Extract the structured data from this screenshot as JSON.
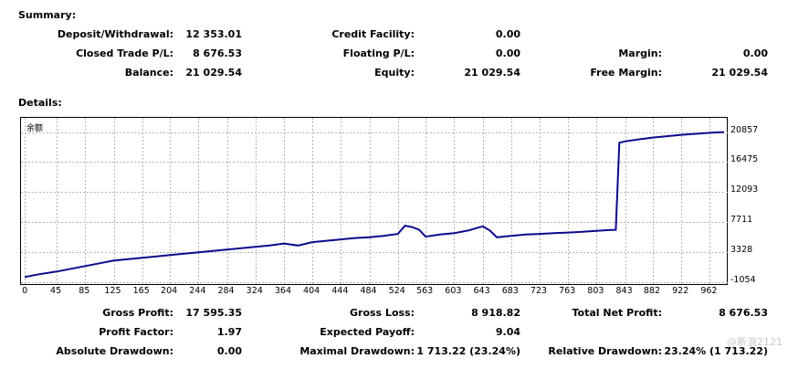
{
  "summary": {
    "title": "Summary:",
    "deposit_withdrawal": {
      "label": "Deposit/Withdrawal:",
      "value": "12 353.01"
    },
    "credit_facility": {
      "label": "Credit Facility:",
      "value": "0.00"
    },
    "closed_trade_pl": {
      "label": "Closed Trade P/L:",
      "value": "8 676.53"
    },
    "floating_pl": {
      "label": "Floating P/L:",
      "value": "0.00"
    },
    "margin": {
      "label": "Margin:",
      "value": "0.00"
    },
    "balance": {
      "label": "Balance:",
      "value": "21 029.54"
    },
    "equity": {
      "label": "Equity:",
      "value": "21 029.54"
    },
    "free_margin": {
      "label": "Free Margin:",
      "value": "21 029.54"
    }
  },
  "details": {
    "title": "Details:",
    "gross_profit": {
      "label": "Gross Profit:",
      "value": "17 595.35"
    },
    "gross_loss": {
      "label": "Gross Loss:",
      "value": "8 918.82"
    },
    "total_net_profit": {
      "label": "Total Net Profit:",
      "value": "8 676.53"
    },
    "profit_factor": {
      "label": "Profit Factor:",
      "value": "1.97"
    },
    "expected_payoff": {
      "label": "Expected Payoff:",
      "value": "9.04"
    },
    "absolute_drawdown": {
      "label": "Absolute Drawdown:",
      "value": "0.00"
    },
    "maximal_drawdown": {
      "label": "Maximal Drawdown:",
      "value": "1 713.22 (23.24%)"
    },
    "relative_drawdown": {
      "label": "Relative Drawdown:",
      "value": "23.24% (1 713.22)"
    }
  },
  "watermark": "@新浪2121",
  "colors": {
    "line": "#0a0a8c",
    "grid": "#b4b4b4"
  },
  "chart_data": {
    "type": "line",
    "title": "余额",
    "xlabel": "",
    "ylabel": "",
    "x_ticks": [
      "0",
      "45",
      "85",
      "125",
      "165",
      "204",
      "244",
      "284",
      "324",
      "364",
      "404",
      "444",
      "484",
      "524",
      "563",
      "603",
      "643",
      "683",
      "723",
      "763",
      "803",
      "843",
      "882",
      "922",
      "962"
    ],
    "y_ticks": [
      "20857",
      "16475",
      "12093",
      "7711",
      "3328",
      "-1054"
    ],
    "xlim": [
      0,
      982
    ],
    "ylim": [
      -1054,
      22400
    ],
    "series": [
      {
        "name": "余额",
        "x": [
          0,
          20,
          45,
          65,
          85,
          105,
          125,
          145,
          165,
          185,
          204,
          224,
          244,
          264,
          284,
          304,
          324,
          344,
          364,
          384,
          404,
          424,
          444,
          464,
          484,
          504,
          524,
          534,
          544,
          554,
          563,
          583,
          603,
          623,
          643,
          653,
          663,
          683,
          703,
          723,
          743,
          763,
          783,
          803,
          820,
          830,
          835,
          843,
          863,
          882,
          902,
          922,
          942,
          962,
          982
        ],
        "y": [
          -300,
          100,
          500,
          900,
          1300,
          1700,
          2100,
          2300,
          2500,
          2700,
          2900,
          3100,
          3300,
          3500,
          3700,
          3900,
          4100,
          4300,
          4600,
          4300,
          4800,
          5000,
          5200,
          5400,
          5500,
          5700,
          6000,
          7200,
          7000,
          6600,
          5600,
          5900,
          6100,
          6500,
          7100,
          6500,
          5500,
          5700,
          5900,
          6000,
          6100,
          6200,
          6300,
          6450,
          6550,
          6600,
          19300,
          19500,
          19800,
          20050,
          20250,
          20450,
          20600,
          20750,
          20857
        ]
      }
    ]
  }
}
